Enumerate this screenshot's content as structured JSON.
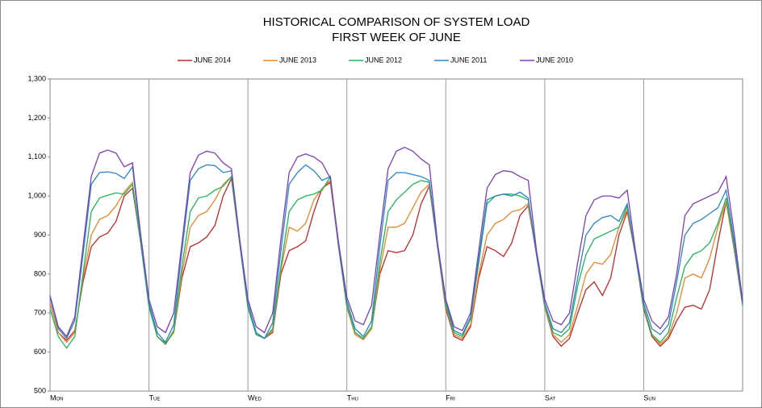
{
  "chart_data": {
    "type": "line",
    "title": "HISTORICAL COMPARISON OF SYSTEM LOAD",
    "subtitle": "FIRST WEEK OF JUNE",
    "categories": [
      "Mon",
      null,
      null,
      null,
      null,
      null,
      null,
      null,
      null,
      null,
      null,
      null,
      "Tue",
      null,
      null,
      null,
      null,
      null,
      null,
      null,
      null,
      null,
      null,
      null,
      "Wed",
      null,
      null,
      null,
      null,
      null,
      null,
      null,
      null,
      null,
      null,
      null,
      "Thu",
      null,
      null,
      null,
      null,
      null,
      null,
      null,
      null,
      null,
      null,
      null,
      "Fri",
      null,
      null,
      null,
      null,
      null,
      null,
      null,
      null,
      null,
      null,
      null,
      "Sat",
      null,
      null,
      null,
      null,
      null,
      null,
      null,
      null,
      null,
      null,
      null,
      "Sun",
      null,
      null,
      null,
      null,
      null,
      null,
      null,
      null,
      null,
      null,
      null,
      null
    ],
    "series": [
      {
        "name": "JUNE 2014",
        "color": "#c0282a",
        "values": [
          725,
          650,
          630,
          655,
          780,
          870,
          895,
          905,
          935,
          1000,
          1020,
          880,
          720,
          640,
          622,
          650,
          790,
          870,
          880,
          895,
          925,
          1000,
          1045,
          880,
          715,
          645,
          635,
          650,
          800,
          860,
          870,
          885,
          960,
          1020,
          1035,
          870,
          715,
          645,
          632,
          660,
          800,
          860,
          855,
          860,
          900,
          980,
          1025,
          870,
          710,
          640,
          630,
          665,
          790,
          870,
          860,
          845,
          880,
          950,
          975,
          850,
          715,
          640,
          615,
          635,
          700,
          760,
          780,
          745,
          790,
          900,
          960,
          850,
          710,
          640,
          615,
          635,
          680,
          715,
          720,
          710,
          760,
          880,
          985,
          860,
          720
        ]
      },
      {
        "name": "JUNE 2013",
        "color": "#e8872b",
        "values": [
          725,
          650,
          625,
          650,
          790,
          900,
          940,
          950,
          975,
          1010,
          1035,
          880,
          720,
          640,
          620,
          650,
          800,
          920,
          950,
          960,
          990,
          1030,
          1050,
          880,
          715,
          645,
          635,
          655,
          810,
          920,
          910,
          930,
          990,
          1020,
          1040,
          870,
          715,
          645,
          632,
          660,
          810,
          920,
          920,
          930,
          970,
          1010,
          1030,
          870,
          715,
          645,
          635,
          670,
          800,
          900,
          930,
          940,
          960,
          965,
          980,
          850,
          715,
          645,
          625,
          645,
          720,
          800,
          830,
          825,
          850,
          920,
          965,
          850,
          715,
          645,
          620,
          640,
          700,
          790,
          800,
          790,
          840,
          920,
          985,
          865,
          720
        ]
      },
      {
        "name": "JUNE 2012",
        "color": "#1fb55a",
        "values": [
          710,
          640,
          610,
          640,
          800,
          960,
          995,
          1002,
          1008,
          1005,
          1030,
          880,
          715,
          640,
          620,
          655,
          820,
          960,
          995,
          1000,
          1015,
          1025,
          1050,
          880,
          715,
          645,
          635,
          660,
          820,
          960,
          990,
          1000,
          1005,
          1015,
          1050,
          870,
          720,
          650,
          635,
          665,
          830,
          960,
          990,
          1010,
          1030,
          1040,
          1035,
          870,
          720,
          650,
          640,
          685,
          830,
          980,
          1000,
          1005,
          1005,
          1000,
          990,
          850,
          720,
          650,
          640,
          660,
          770,
          850,
          890,
          900,
          910,
          920,
          975,
          850,
          715,
          645,
          625,
          650,
          740,
          820,
          850,
          860,
          880,
          930,
          995,
          870,
          720
        ]
      },
      {
        "name": "JUNE 2011",
        "color": "#2a86c5",
        "values": [
          740,
          660,
          635,
          680,
          850,
          1030,
          1060,
          1062,
          1058,
          1045,
          1075,
          890,
          725,
          650,
          625,
          670,
          860,
          1040,
          1070,
          1080,
          1078,
          1060,
          1065,
          880,
          725,
          650,
          635,
          675,
          860,
          1030,
          1060,
          1080,
          1065,
          1040,
          1050,
          870,
          730,
          660,
          640,
          680,
          870,
          1040,
          1060,
          1060,
          1055,
          1050,
          1040,
          870,
          730,
          655,
          645,
          690,
          840,
          990,
          1000,
          1005,
          1000,
          1010,
          995,
          850,
          725,
          660,
          650,
          675,
          790,
          900,
          930,
          945,
          950,
          935,
          980,
          850,
          725,
          660,
          645,
          670,
          780,
          900,
          930,
          940,
          955,
          970,
          1015,
          880,
          725
        ]
      },
      {
        "name": "JUNE 2010",
        "color": "#7b3fb5",
        "values": [
          745,
          665,
          640,
          690,
          870,
          1050,
          1110,
          1118,
          1110,
          1075,
          1085,
          900,
          735,
          665,
          650,
          700,
          880,
          1060,
          1105,
          1115,
          1110,
          1085,
          1070,
          890,
          735,
          665,
          650,
          700,
          890,
          1060,
          1100,
          1108,
          1100,
          1085,
          1045,
          880,
          740,
          680,
          670,
          720,
          900,
          1070,
          1115,
          1125,
          1115,
          1095,
          1080,
          880,
          735,
          665,
          655,
          700,
          860,
          1020,
          1055,
          1065,
          1062,
          1050,
          1040,
          860,
          735,
          680,
          670,
          700,
          830,
          950,
          990,
          1000,
          1000,
          995,
          1015,
          860,
          735,
          680,
          660,
          690,
          800,
          950,
          980,
          990,
          1000,
          1010,
          1050,
          900,
          730
        ]
      }
    ],
    "ylim": [
      500,
      1300
    ],
    "yticks": [
      500,
      600,
      700,
      800,
      900,
      {
        "value": 1000,
        "label": "1,000"
      },
      {
        "value": 1100,
        "label": "1,100"
      },
      {
        "value": 1200,
        "label": "1,200"
      },
      {
        "value": 1300,
        "label": "1,300"
      }
    ],
    "grid": "x",
    "legend": "top"
  }
}
